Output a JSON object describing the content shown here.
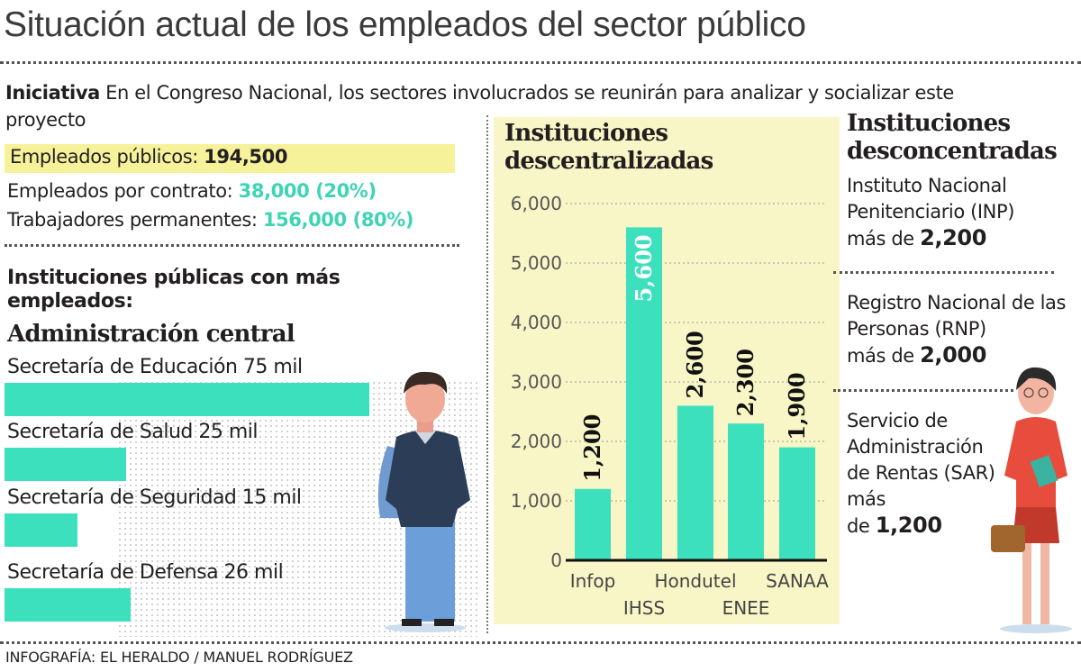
{
  "title": "Situación actual de los empleados del sector público",
  "intro": {
    "lead": "Iniciativa",
    "text": " En el Congreso Nacional, los sectores involucrados se reunirán para analizar y socializar este proyecto"
  },
  "stats": {
    "publicos_label": "Empleados públicos: ",
    "publicos_value": "194,500",
    "contrato_label": "Empleados por contrato: ",
    "contrato_value": "38,000 (20%)",
    "permanentes_label": "Trabajadores permanentes: ",
    "permanentes_value": "156,000 (80%)"
  },
  "section_heading": "Instituciones públicas con más empleados:",
  "colors": {
    "accent": "#3de0bd",
    "highlight": "#f6f29a",
    "panel": "#f8f6c6"
  },
  "chart_data": [
    {
      "type": "bar",
      "orientation": "horizontal",
      "title": "Administración central",
      "categories": [
        "Secretaría de Educación",
        "Secretaría de Salud",
        "Secretaría de Seguridad",
        "Secretaría de Defensa"
      ],
      "values": [
        75,
        25,
        15,
        26
      ],
      "unit": "mil",
      "labels": [
        "Secretaría de Educación 75 mil",
        "Secretaría de Salud 25 mil",
        "Secretaría de Seguridad 15 mil",
        "Secretaría de Defensa 26 mil"
      ]
    },
    {
      "type": "bar",
      "title": "Instituciones descentralizadas",
      "categories": [
        "Infop",
        "IHSS",
        "Hondutel",
        "ENEE",
        "SANAA"
      ],
      "values": [
        1200,
        5600,
        2600,
        2300,
        1900
      ],
      "data_labels": [
        "1,200",
        "5,600",
        "2,600",
        "2,300",
        "1,900"
      ],
      "ylim": [
        0,
        6000
      ],
      "yticks": [
        "0",
        "1,000",
        "2,000",
        "3,000",
        "4,000",
        "5,000",
        "6,000"
      ],
      "grid": true
    }
  ],
  "desconcentradas": {
    "title": "Instituciones desconcentradas",
    "items": [
      {
        "name": "Instituto Nacional Penitenciario (INP)",
        "prefix": "más de ",
        "value": "2,200"
      },
      {
        "name": "Registro Nacional de las Personas (RNP)",
        "prefix": "más de ",
        "value": "2,000"
      },
      {
        "name": "Servicio de Administración de Rentas (SAR) más",
        "prefix": "de ",
        "value": "1,200"
      }
    ]
  },
  "footer": "INFOGRAFÍA: EL HERALDO / MANUEL RODRÍGUEZ"
}
